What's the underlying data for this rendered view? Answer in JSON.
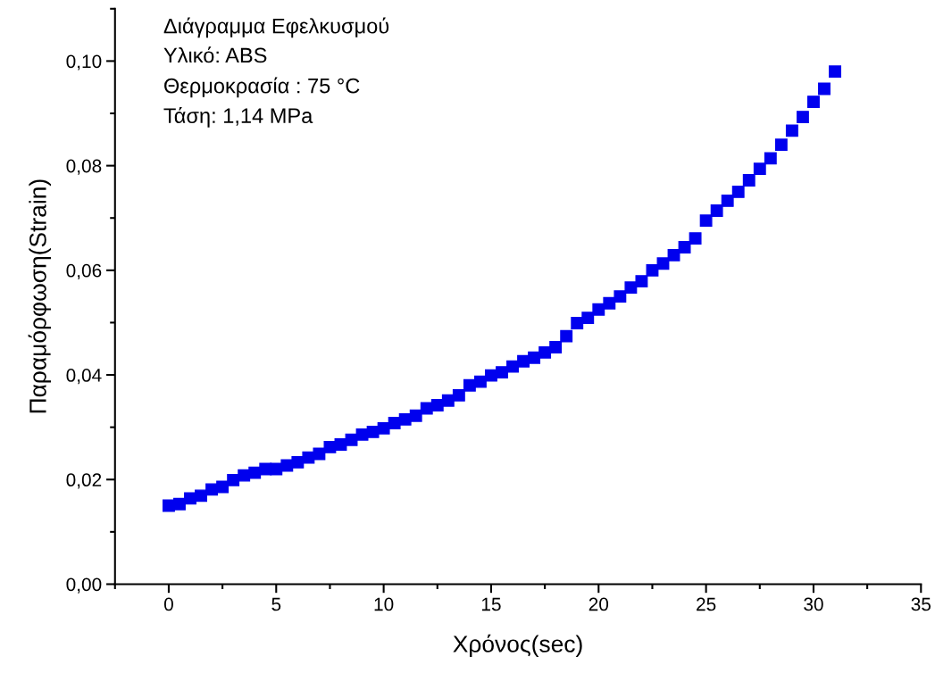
{
  "chart_data": {
    "type": "scatter",
    "xlabel": "Χρόνος(sec)",
    "ylabel": "Παραμόρφωση(Strain)",
    "annotations": [
      "Διάγραμμα Εφελκυσμού",
      "Υλικό: ABS",
      "Θερμοκρασία : 75 °C",
      "Τάση: 1,14 MPa"
    ],
    "x": [
      0,
      0.5,
      1,
      1.5,
      2,
      2.5,
      3,
      3.5,
      4,
      4.5,
      5,
      5.5,
      6,
      6.5,
      7,
      7.5,
      8,
      8.5,
      9,
      9.5,
      10,
      10.5,
      11,
      11.5,
      12,
      12.5,
      13,
      13.5,
      14,
      14.5,
      15,
      15.5,
      16,
      16.5,
      17,
      17.5,
      18,
      18.5,
      19,
      19.5,
      20,
      20.5,
      21,
      21.5,
      22,
      22.5,
      23,
      23.5,
      24,
      24.5,
      25,
      25.5,
      26,
      26.5,
      27,
      27.5,
      28,
      28.5,
      29,
      29.5,
      30,
      30.5,
      31
    ],
    "series": [
      {
        "color": "#0000ee",
        "values": [
          0.015,
          0.0153,
          0.0164,
          0.0169,
          0.0181,
          0.0186,
          0.0199,
          0.0208,
          0.0213,
          0.022,
          0.022,
          0.0227,
          0.0233,
          0.0242,
          0.0249,
          0.0262,
          0.0267,
          0.0276,
          0.0286,
          0.0291,
          0.0298,
          0.0308,
          0.0315,
          0.0322,
          0.0336,
          0.0342,
          0.0351,
          0.0361,
          0.038,
          0.0387,
          0.0399,
          0.0405,
          0.0416,
          0.0426,
          0.0433,
          0.0443,
          0.0453,
          0.0474,
          0.0499,
          0.0509,
          0.0525,
          0.0537,
          0.055,
          0.0567,
          0.0579,
          0.06,
          0.0613,
          0.0629,
          0.0644,
          0.0661,
          0.0695,
          0.0714,
          0.0733,
          0.075,
          0.0772,
          0.0794,
          0.0814,
          0.084,
          0.0867,
          0.0893,
          0.0922,
          0.0947,
          0.098
        ]
      }
    ],
    "marker": "square",
    "xlim": [
      -2.5,
      35
    ],
    "xticks": [
      0,
      5,
      10,
      15,
      20,
      25,
      30,
      35
    ],
    "ylim": [
      0,
      0.11
    ],
    "yticks": [
      {
        "value": 0,
        "label": "0,00"
      },
      {
        "value": 0.02,
        "label": "0,02"
      },
      {
        "value": 0.04,
        "label": "0,04"
      },
      {
        "value": 0.06,
        "label": "0,06"
      },
      {
        "value": 0.08,
        "label": "0,08"
      },
      {
        "value": 0.1,
        "label": "0,10"
      }
    ],
    "grid": false
  }
}
